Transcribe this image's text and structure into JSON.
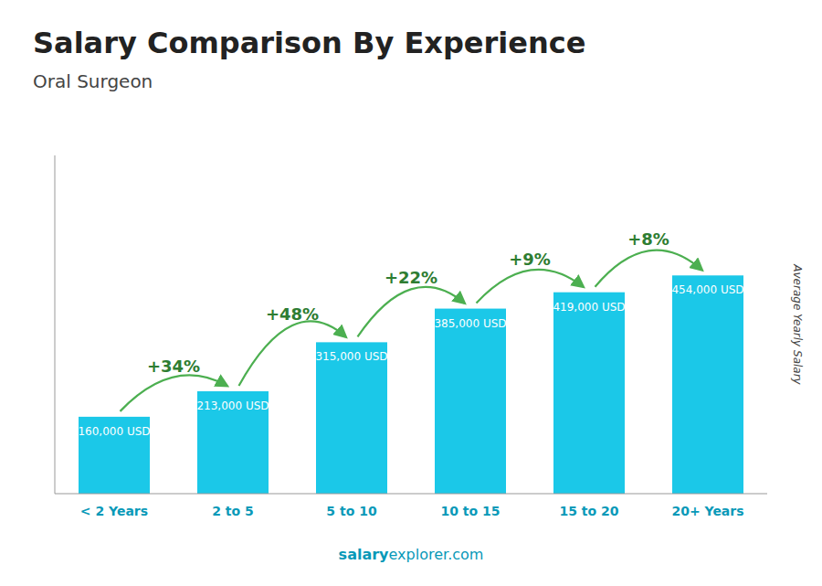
{
  "chart_data": {
    "type": "bar",
    "title": "Salary Comparison By Experience",
    "subtitle": "Oral Surgeon",
    "ylabel": "Average Yearly Salary",
    "categories": [
      "< 2 Years",
      "2 to 5",
      "5 to 10",
      "10 to 15",
      "15 to 20",
      "20+ Years"
    ],
    "values": [
      160000,
      213000,
      315000,
      385000,
      419000,
      454000
    ],
    "value_labels": [
      "160,000 USD",
      "213,000 USD",
      "315,000 USD",
      "385,000 USD",
      "419,000 USD",
      "454,000 USD"
    ],
    "data_labels": true,
    "annotations": [
      "+34%",
      "+48%",
      "+22%",
      "+9%",
      "+8%"
    ],
    "watermark": [
      "salary",
      "explorer.com"
    ],
    "color": "#1bc8e8",
    "ylim": [
      0,
      703700
    ],
    "tick_labels": "x",
    "grid": false
  }
}
